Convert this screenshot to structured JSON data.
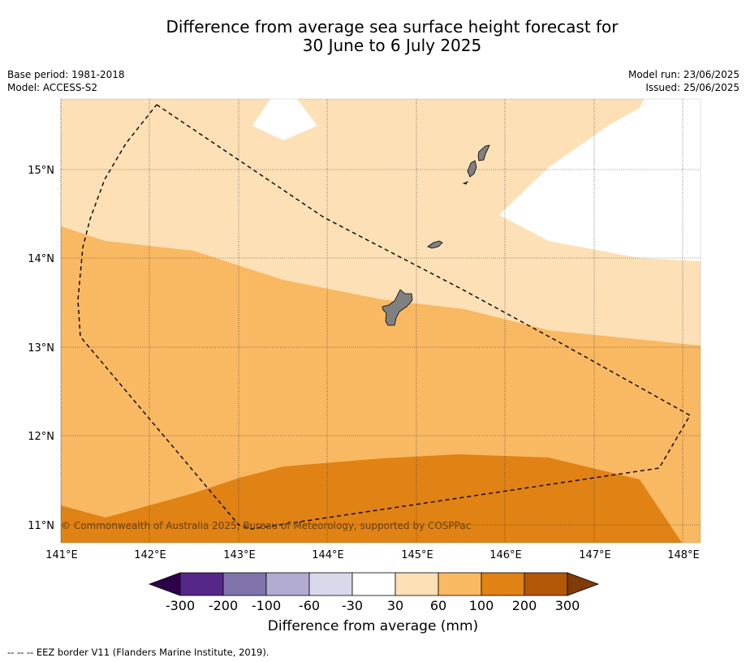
{
  "title": {
    "line1": "Difference from average sea surface height forecast for",
    "line2": "30 June to 6 July 2025"
  },
  "meta_left": {
    "base_period": "Base period: 1981-2018",
    "model": "Model: ACCESS-S2"
  },
  "meta_right": {
    "model_run": "Model run: 23/06/2025",
    "issued": "Issued: 25/06/2025"
  },
  "map": {
    "lon_ticks": [
      "141°E",
      "142°E",
      "143°E",
      "144°E",
      "145°E",
      "146°E",
      "147°E",
      "148°E"
    ],
    "lat_ticks": [
      "15°N",
      "14°N",
      "13°N",
      "12°N",
      "11°N"
    ],
    "copyright": "© Commonwealth of Australia 2025, Bureau of Meteorology, supported by COSPPac",
    "colors": {
      "c30_60": "#fde0b6",
      "c60_100": "#f9b862",
      "c100_200": "#e08214",
      "land": "#808080"
    }
  },
  "colorbar": {
    "ticks": [
      "-300",
      "-200",
      "-100",
      "-60",
      "-30",
      "30",
      "60",
      "100",
      "200",
      "300"
    ],
    "colors": [
      "#2d004b",
      "#542788",
      "#8073ac",
      "#b2abd2",
      "#d8daeb",
      "#ffffff",
      "#fde0b6",
      "#f9b862",
      "#e08214",
      "#b35806",
      "#7f3b08"
    ],
    "label": "Difference from average (mm)"
  },
  "footnote": "--  --  -- EEZ border V11 (Flanders Marine Institute, 2019)."
}
